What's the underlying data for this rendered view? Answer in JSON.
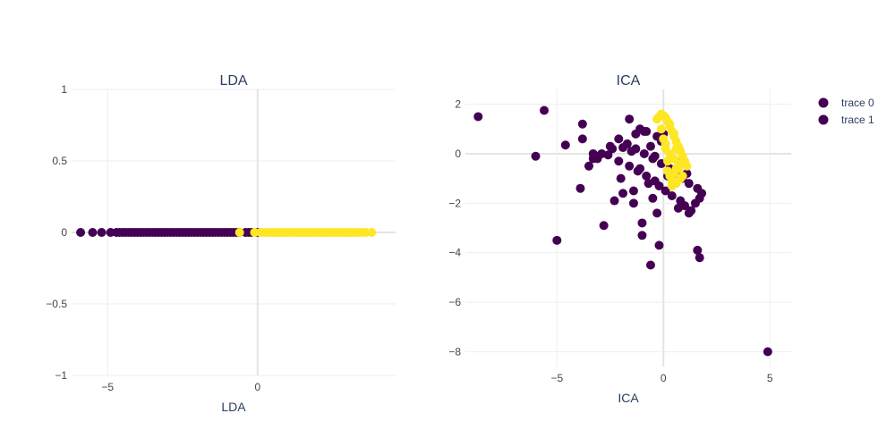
{
  "chart_data": [
    {
      "type": "scatter",
      "title": "LDA",
      "xlabel": "LDA",
      "ylabel": "",
      "xlim": [
        -6.2,
        4.6
      ],
      "ylim": [
        -1,
        1
      ],
      "xticks": [
        -5,
        0
      ],
      "xtick_labels": [
        "−5",
        "0"
      ],
      "yticks": [
        1,
        0.5,
        0,
        -0.5,
        -1
      ],
      "ytick_labels": [
        "1",
        "0.5",
        "0",
        "−0.5",
        "−1"
      ],
      "grid": true,
      "series": [
        {
          "color": "#440154",
          "x": [
            -5.9,
            -5.5,
            -5.2,
            -4.9,
            -4.7,
            -4.6,
            -4.5,
            -4.4,
            -4.3,
            -4.2,
            -4.1,
            -4.0,
            -3.9,
            -3.8,
            -3.7,
            -3.6,
            -3.5,
            -3.4,
            -3.3,
            -3.2,
            -3.1,
            -3.0,
            -2.9,
            -2.8,
            -2.7,
            -2.6,
            -2.5,
            -2.4,
            -2.3,
            -2.2,
            -2.1,
            -2.0,
            -1.9,
            -1.8,
            -1.7,
            -1.6,
            -1.5,
            -1.4,
            -1.3,
            -1.2,
            -1.1,
            -1.0,
            -0.9,
            -0.8,
            -0.7,
            -0.6,
            -0.4,
            -0.3,
            -0.2,
            0.0
          ],
          "y": [
            0,
            0,
            0,
            0,
            0,
            0,
            0,
            0,
            0,
            0,
            0,
            0,
            0,
            0,
            0,
            0,
            0,
            0,
            0,
            0,
            0,
            0,
            0,
            0,
            0,
            0,
            0,
            0,
            0,
            0,
            0,
            0,
            0,
            0,
            0,
            0,
            0,
            0,
            0,
            0,
            0,
            0,
            0,
            0,
            0,
            0,
            0,
            0,
            0,
            0
          ]
        },
        {
          "color": "#fde725",
          "x": [
            -0.6,
            -0.1,
            0.1,
            0.2,
            0.3,
            0.4,
            0.5,
            0.6,
            0.7,
            0.8,
            0.9,
            1.0,
            1.1,
            1.2,
            1.3,
            1.4,
            1.5,
            1.6,
            1.7,
            1.8,
            1.9,
            2.0,
            2.1,
            2.2,
            2.3,
            2.4,
            2.5,
            2.6,
            2.7,
            2.8,
            2.9,
            3.0,
            3.1,
            3.2,
            3.3,
            3.4,
            3.5,
            3.6,
            3.8
          ],
          "y": [
            0,
            0,
            0,
            0,
            0,
            0,
            0,
            0,
            0,
            0,
            0,
            0,
            0,
            0,
            0,
            0,
            0,
            0,
            0,
            0,
            0,
            0,
            0,
            0,
            0,
            0,
            0,
            0,
            0,
            0,
            0,
            0,
            0,
            0,
            0,
            0,
            0,
            0,
            0
          ]
        }
      ]
    },
    {
      "type": "scatter",
      "title": "ICA",
      "xlabel": "ICA",
      "ylabel": "",
      "xlim": [
        -9.3,
        6.0
      ],
      "ylim": [
        -8.6,
        2.6
      ],
      "xticks": [
        -5,
        0,
        5
      ],
      "xtick_labels": [
        "−5",
        "0",
        "5"
      ],
      "yticks": [
        2,
        0,
        -2,
        -4,
        -6,
        -8
      ],
      "ytick_labels": [
        "2",
        "0",
        "−2",
        "−4",
        "−6",
        "−8"
      ],
      "grid": true,
      "legend_position": "top-right",
      "legend": [
        "trace 0",
        "trace 1"
      ],
      "series": [
        {
          "name": "trace 0",
          "color": "#440154",
          "x": [
            -8.7,
            -5.6,
            -3.8,
            -3.8,
            -3.3,
            -3.3,
            -2.6,
            -1.3,
            -1.1,
            -0.9,
            -0.3,
            -0.1,
            -0.6,
            -1.5,
            -2.4,
            -1.9,
            -2.1,
            -1.6,
            -1.2,
            -0.8,
            -0.4,
            -0.2,
            0.1,
            0.4,
            0.8,
            1.0,
            1.3,
            1.5,
            1.7,
            1.8,
            1.6,
            1.2,
            0.9,
            0.6,
            0.3,
            -0.1,
            -0.5,
            -0.9,
            -1.3,
            -1.7,
            -2.1,
            -2.5,
            -2.9,
            -3.1,
            -3.5,
            -3.9,
            -4.6,
            -6.0,
            -5.0,
            -2.8,
            -1.0,
            -0.2,
            1.6,
            1.7,
            4.9,
            -2.0,
            -1.4,
            -1.0,
            -0.6,
            -0.3,
            0.2,
            0.5,
            0.9,
            1.1,
            -0.7,
            -1.9,
            -1.1,
            -0.4,
            0.0,
            -0.8,
            -1.6,
            -2.3,
            -1.4,
            -0.5,
            0.7,
            1.2
          ],
          "y": [
            1.5,
            1.75,
            1.2,
            0.6,
            0.0,
            -0.2,
            -0.05,
            0.8,
            1.0,
            0.9,
            0.7,
            0.5,
            0.3,
            0.1,
            0.2,
            0.25,
            -0.3,
            -0.5,
            -0.7,
            -0.9,
            -1.1,
            -1.3,
            -1.5,
            -1.7,
            -1.9,
            -2.1,
            -2.3,
            -2.0,
            -1.8,
            -1.6,
            -1.4,
            -1.2,
            -1.0,
            -0.8,
            -0.6,
            -0.4,
            -0.2,
            0.0,
            0.2,
            0.4,
            0.6,
            0.3,
            0.0,
            -0.2,
            -0.5,
            -1.4,
            0.35,
            -0.1,
            -3.5,
            -2.9,
            -3.3,
            -3.7,
            -3.9,
            -4.2,
            -8.0,
            -1.0,
            -1.5,
            -2.8,
            -4.5,
            -2.4,
            -0.9,
            -0.7,
            -0.3,
            -0.8,
            -1.2,
            -1.6,
            -0.6,
            -0.1,
            0.8,
            0.9,
            1.4,
            -1.9,
            -2.0,
            -1.8,
            -2.2,
            -2.4
          ]
        },
        {
          "name": "trace 1",
          "color": "#440154",
          "marker_color": "#fde725",
          "x": [
            -0.3,
            -0.2,
            -0.1,
            0.0,
            0.1,
            0.2,
            0.3,
            0.4,
            0.5,
            0.6,
            0.7,
            0.8,
            0.9,
            1.0,
            1.1,
            0.2,
            0.3,
            0.4,
            0.5,
            0.6,
            0.7,
            0.1,
            0.0,
            -0.1,
            0.3,
            0.5,
            0.6,
            0.8,
            0.9,
            0.4,
            0.2,
            0.1,
            0.6,
            0.7,
            0.5,
            0.3
          ],
          "y": [
            1.4,
            1.5,
            1.6,
            1.55,
            1.45,
            1.3,
            1.1,
            0.9,
            0.7,
            0.5,
            0.3,
            0.1,
            -0.1,
            -0.3,
            -0.5,
            -0.7,
            -0.9,
            -1.1,
            -0.8,
            -0.6,
            -0.4,
            0.2,
            0.6,
            1.0,
            0.0,
            -0.2,
            -1.2,
            -1.0,
            -0.9,
            -1.3,
            -0.3,
            0.4,
            0.2,
            -0.6,
            0.8,
            1.2
          ]
        }
      ]
    }
  ]
}
